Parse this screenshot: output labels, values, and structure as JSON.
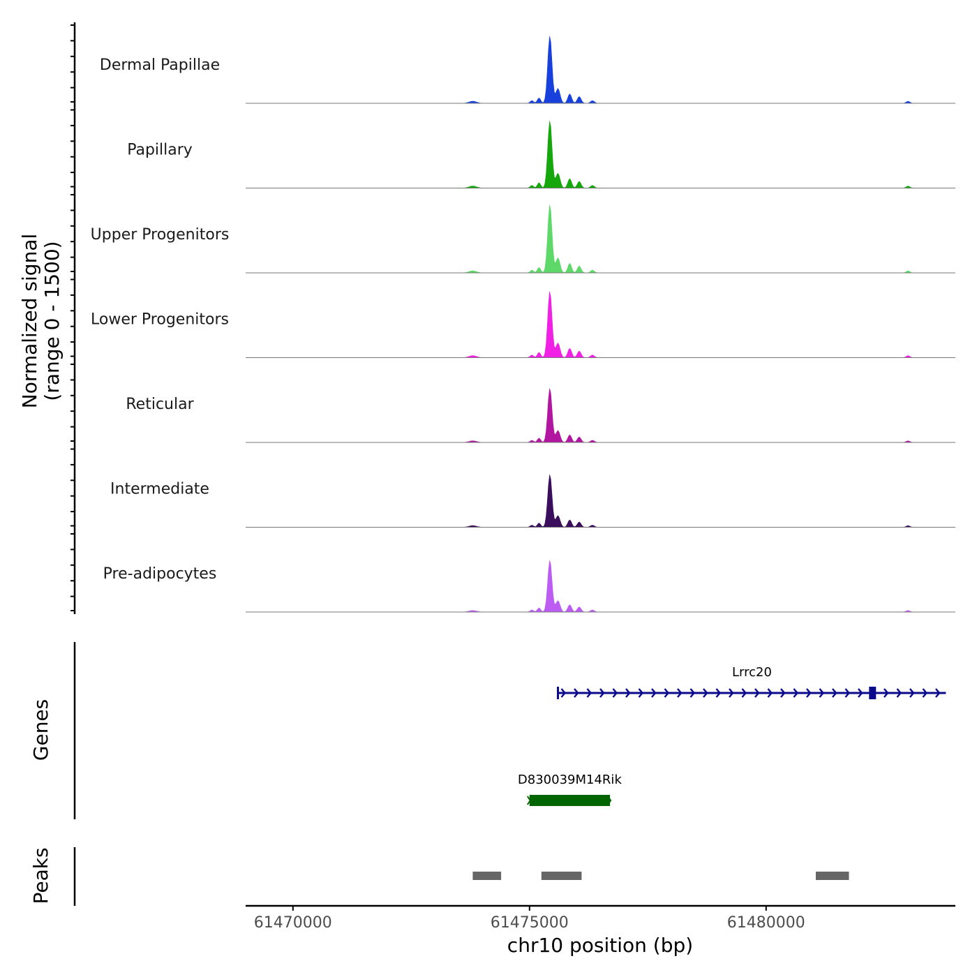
{
  "chart_data": {
    "type": "area",
    "title": "",
    "chromosome": "chr10",
    "xlabel": "chr10 position (bp)",
    "ylabel": "Normalized signal\n(range 0 - 1500)",
    "ylabel_lines": [
      "Normalized signal",
      "(range 0 - 1500)"
    ],
    "y_range": [
      0,
      1500
    ],
    "xlim": [
      61469000,
      61484000
    ],
    "x_ticks": [
      61470000,
      61475000,
      61480000
    ],
    "x_tick_labels": [
      "61470000",
      "61475000",
      "61480000"
    ],
    "signal_peaks": [
      {
        "center": 61475050,
        "sd": 35,
        "rel": 0.04
      },
      {
        "center": 61475200,
        "sd": 35,
        "rel": 0.08
      },
      {
        "center": 61475430,
        "sd": 45,
        "rel": 1.0
      },
      {
        "center": 61475600,
        "sd": 45,
        "rel": 0.22
      },
      {
        "center": 61475850,
        "sd": 40,
        "rel": 0.14
      },
      {
        "center": 61476050,
        "sd": 40,
        "rel": 0.1
      },
      {
        "center": 61476330,
        "sd": 40,
        "rel": 0.04
      },
      {
        "center": 61473800,
        "sd": 80,
        "rel": 0.03
      },
      {
        "center": 61483000,
        "sd": 40,
        "rel": 0.03
      }
    ],
    "series": [
      {
        "name": "Dermal Papillae",
        "color": "#1740dc",
        "peak_max": 1480
      },
      {
        "name": "Papillary",
        "color": "#16a70d",
        "peak_max": 1480
      },
      {
        "name": "Upper Progenitors",
        "color": "#5fd86a",
        "peak_max": 1500
      },
      {
        "name": "Lower Progenitors",
        "color": "#f021e4",
        "peak_max": 1460
      },
      {
        "name": "Reticular",
        "color": "#b2159f",
        "peak_max": 1190
      },
      {
        "name": "Intermediate",
        "color": "#3a0e5c",
        "peak_max": 1160
      },
      {
        "name": "Pre-adipocytes",
        "color": "#bc5cf2",
        "peak_max": 1140
      }
    ],
    "genes_track_label": "Genes",
    "genes": [
      {
        "name": "Lrrc20",
        "start": 61475600,
        "end": 61483800,
        "strand": "+",
        "color": "#0b0b8c",
        "exon_at": 61482250
      },
      {
        "name": "D830039M14Rik",
        "start": 61475000,
        "end": 61476700,
        "strand": "+",
        "color": "#006400"
      }
    ],
    "peaks_track_label": "Peaks",
    "peaks_color": "#666666",
    "peaks": [
      {
        "start": 61473800,
        "end": 61474400
      },
      {
        "start": 61475250,
        "end": 61476100
      },
      {
        "start": 61481050,
        "end": 61481750
      }
    ]
  }
}
